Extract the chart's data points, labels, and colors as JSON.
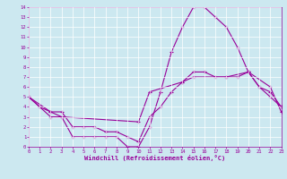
{
  "line1_x": [
    0,
    1,
    2,
    3,
    4,
    5,
    6,
    7,
    8,
    9,
    10,
    11,
    12,
    13,
    14,
    15,
    16,
    17,
    18,
    19,
    20,
    21,
    22,
    23
  ],
  "line1_y": [
    5,
    4,
    3,
    3,
    1,
    1,
    1,
    1,
    1,
    0,
    0,
    2,
    5.5,
    9.5,
    12,
    14,
    14,
    13,
    12,
    10,
    7.5,
    6,
    5,
    4
  ],
  "line2_x": [
    0,
    2,
    3,
    10,
    11,
    14,
    15,
    18,
    20,
    22,
    23
  ],
  "line2_y": [
    5,
    3.5,
    3,
    2.5,
    5.5,
    6.5,
    7,
    7,
    7.5,
    6,
    3.5
  ],
  "line3_x": [
    0,
    1,
    2,
    3,
    4,
    5,
    6,
    7,
    8,
    9,
    10,
    11,
    12,
    13,
    14,
    15,
    16,
    17,
    18,
    19,
    20,
    21,
    22,
    23
  ],
  "line3_y": [
    5,
    4,
    3.5,
    3.5,
    2,
    2,
    2,
    1.5,
    1.5,
    1,
    0.5,
    3,
    4,
    5.5,
    6.5,
    7.5,
    7.5,
    7,
    7,
    7,
    7.5,
    6,
    5.5,
    4
  ],
  "line_color": "#990099",
  "bg_color": "#cce8f0",
  "grid_color": "#ffffff",
  "xlabel": "Windchill (Refroidissement éolien,°C)",
  "xlim": [
    0,
    23
  ],
  "ylim": [
    0,
    14
  ],
  "xticks": [
    0,
    1,
    2,
    3,
    4,
    5,
    6,
    7,
    8,
    9,
    10,
    11,
    12,
    13,
    14,
    15,
    16,
    17,
    18,
    19,
    20,
    21,
    22,
    23
  ],
  "yticks": [
    0,
    1,
    2,
    3,
    4,
    5,
    6,
    7,
    8,
    9,
    10,
    11,
    12,
    13,
    14
  ]
}
